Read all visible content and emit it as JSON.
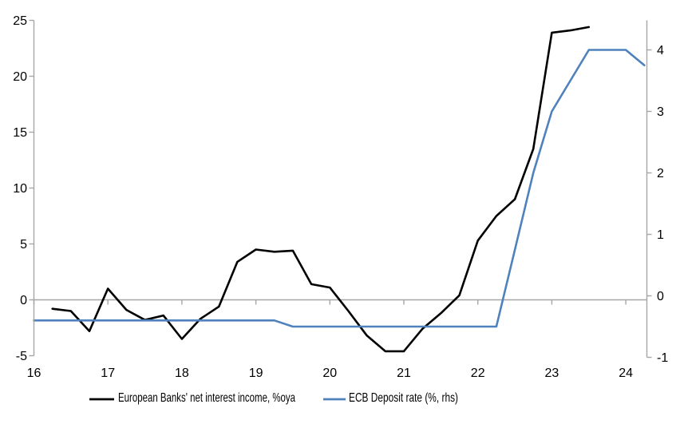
{
  "chart_data": {
    "type": "line",
    "title": "",
    "x_axis": {
      "ticks": [
        16,
        17,
        18,
        19,
        20,
        21,
        22,
        23,
        24
      ],
      "range": [
        16,
        24.3
      ]
    },
    "left_axis": {
      "ticks": [
        -5,
        0,
        5,
        10,
        15,
        20,
        25
      ],
      "range": [
        -5,
        25
      ]
    },
    "right_axis": {
      "ticks": [
        -1,
        0,
        1,
        2,
        3,
        4
      ],
      "range": [
        -1,
        4.5
      ]
    },
    "grid": {
      "zero_line_only": true
    },
    "legend_position": "bottom",
    "series": [
      {
        "name": "European Banks' net interest income, %oya",
        "axis": "left",
        "color": "#000000",
        "x_start": 16.25,
        "x_step": 0.25,
        "values": [
          -0.8,
          -1.0,
          -2.8,
          1.0,
          -0.9,
          -1.8,
          -1.4,
          -3.5,
          -1.7,
          -0.6,
          3.4,
          4.5,
          4.3,
          4.4,
          1.4,
          1.1,
          -1.0,
          -3.2,
          -4.6,
          -4.6,
          -2.6,
          -1.2,
          0.4,
          5.3,
          7.5,
          9.0,
          13.5,
          23.9,
          24.1,
          24.4
        ]
      },
      {
        "name": "ECB Deposit rate (%, rhs)",
        "axis": "right",
        "color": "#4F81BD",
        "x_start": 16.0,
        "x_step": 0.25,
        "values": [
          -0.4,
          -0.4,
          -0.4,
          -0.4,
          -0.4,
          -0.4,
          -0.4,
          -0.4,
          -0.4,
          -0.4,
          -0.4,
          -0.4,
          -0.4,
          -0.4,
          -0.5,
          -0.5,
          -0.5,
          -0.5,
          -0.5,
          -0.5,
          -0.5,
          -0.5,
          -0.5,
          -0.5,
          -0.5,
          -0.5,
          0.75,
          2.0,
          3.0,
          3.5,
          4.0,
          4.0,
          4.0,
          3.75
        ]
      }
    ],
    "colors": {
      "axis": "#A6A6A6",
      "zero_line": "#A6A6A6"
    }
  }
}
